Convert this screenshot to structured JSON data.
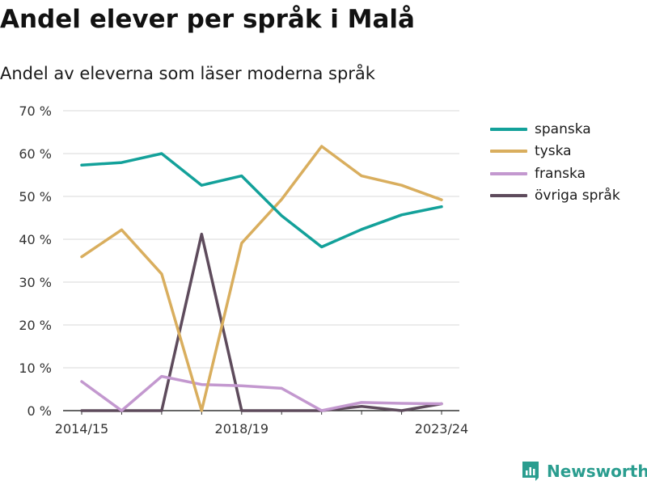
{
  "title": "Andel elever per språk i Malå",
  "subtitle": "Andel av eleverna som läser moderna språk",
  "brand": "Newsworthy",
  "chart_data": {
    "type": "line",
    "x": [
      "2014/15",
      "2015/16",
      "2016/17",
      "2017/18",
      "2018/19",
      "2019/20",
      "2020/21",
      "2021/22",
      "2022/23",
      "2023/24"
    ],
    "x_tick_labels": [
      "2014/15",
      "2018/19",
      "2023/24"
    ],
    "y_ticks": [
      0,
      10,
      20,
      30,
      40,
      50,
      60,
      70
    ],
    "y_tick_labels": [
      "0 %",
      "10 %",
      "20 %",
      "30 %",
      "40 %",
      "50 %",
      "60 %",
      "70 %"
    ],
    "ylim": [
      0,
      70
    ],
    "grid": true,
    "legend_position": "right",
    "series": [
      {
        "name": "spanska",
        "color": "#13a19a",
        "values": [
          57.3,
          57.9,
          60.0,
          52.6,
          54.8,
          45.5,
          38.2,
          42.3,
          45.7,
          47.6
        ]
      },
      {
        "name": "tyska",
        "color": "#d9ae5e",
        "values": [
          35.9,
          42.2,
          31.9,
          0.0,
          39.1,
          49.3,
          61.7,
          54.8,
          52.6,
          49.2
        ]
      },
      {
        "name": "franska",
        "color": "#c398cf",
        "values": [
          6.8,
          0.0,
          8.0,
          6.1,
          5.8,
          5.2,
          0.0,
          1.9,
          1.7,
          1.6
        ]
      },
      {
        "name": "övriga språk",
        "color": "#5e4b5c",
        "values": [
          0.0,
          0.0,
          0.0,
          41.2,
          0.0,
          0.0,
          0.0,
          1.0,
          0.0,
          1.6
        ]
      }
    ]
  }
}
